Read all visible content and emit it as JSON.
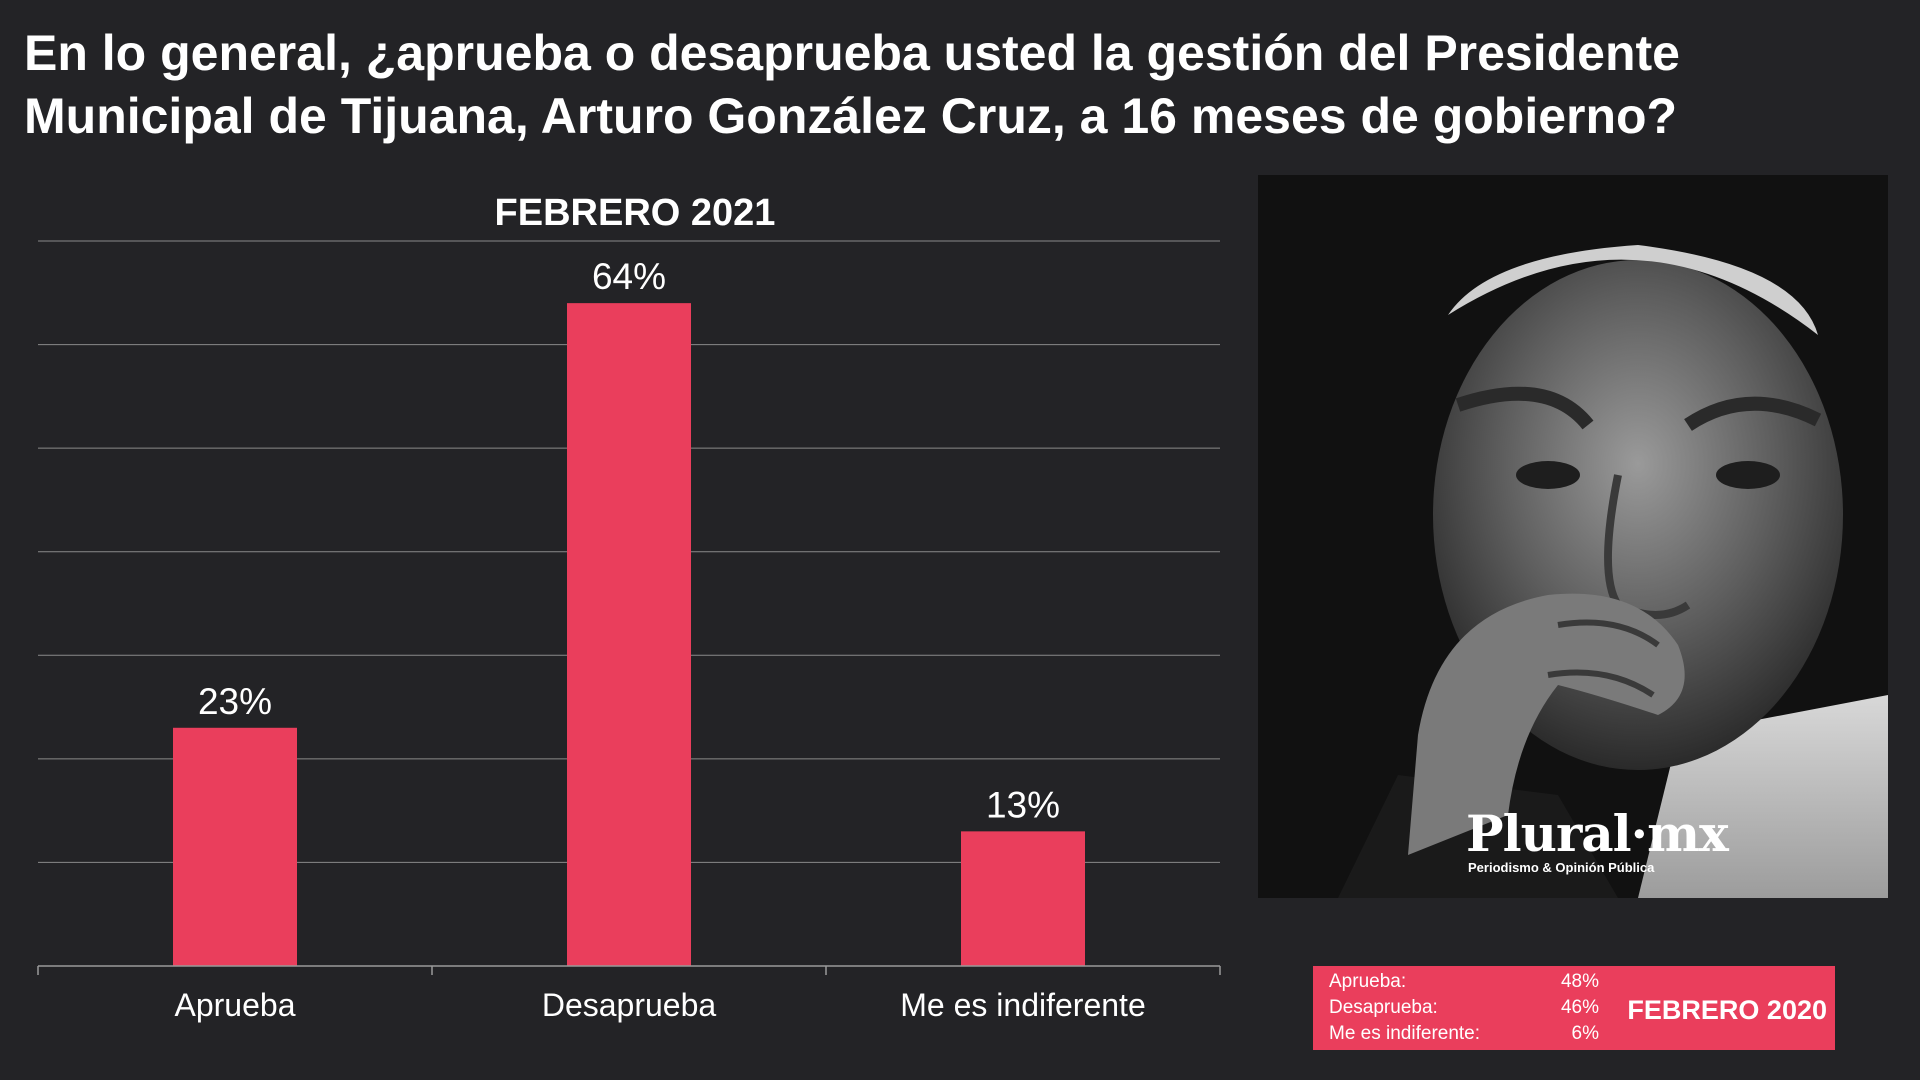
{
  "title_lines": [
    "En lo general, ¿aprueba o desaprueba usted la gestión del Presidente",
    "Municipal de Tijuana, Arturo González Cruz, a 16 meses de gobierno?"
  ],
  "chart_data": {
    "type": "bar",
    "title": "FEBRERO 2021",
    "categories": [
      "Aprueba",
      "Desaprueba",
      "Me es indiferente"
    ],
    "values": [
      23,
      64,
      13
    ],
    "value_labels": [
      "23%",
      "64%",
      "13%"
    ],
    "ylim": [
      0,
      70
    ],
    "grid": true,
    "bar_color": "#ea3e5c"
  },
  "photo": {
    "logo_main": "Plural·mx",
    "logo_sub": "Periodismo & Opinión Pública"
  },
  "previous": {
    "title": "FEBRERO 2020",
    "color": "#ea3e5c",
    "rows": [
      {
        "label": "Aprueba:",
        "value": "48%"
      },
      {
        "label": "Desaprueba:",
        "value": "46%"
      },
      {
        "label": "Me es indiferente:",
        "value": "6%"
      }
    ]
  }
}
